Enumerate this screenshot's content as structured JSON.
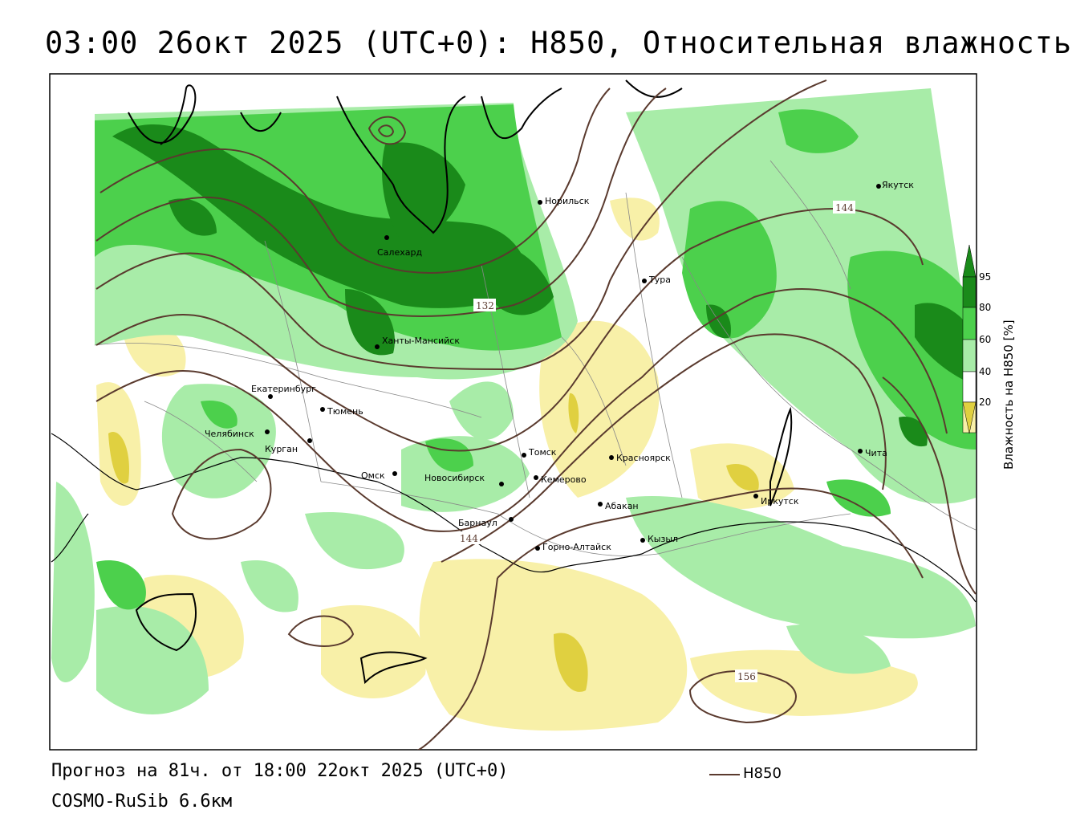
{
  "title": "03:00 26окт 2025 (UTC+0): H850, Относительная влажность",
  "footer": {
    "forecast": "Прогноз на 81ч. от 18:00 22окт 2025 (UTC+0)",
    "model": "COSMO-RuSib 6.6км",
    "legend_label": "H850"
  },
  "colorbar": {
    "title": "Влажность на H850 [%]",
    "levels": [
      "95",
      "80",
      "60",
      "40",
      "20"
    ],
    "colors": {
      "c95": "#1a8a1a",
      "c80": "#4cd04c",
      "c60": "#a8eca8",
      "c40": "#ffffff",
      "c20": "#f8f0a8",
      "c0": "#e0d040"
    }
  },
  "contour_color": "#5a3a2e",
  "isoline_labels": [
    "132",
    "144",
    "144",
    "156"
  ],
  "cities": [
    {
      "name": "Якутск"
    },
    {
      "name": "Норильск"
    },
    {
      "name": "Салехард"
    },
    {
      "name": "Тура"
    },
    {
      "name": "Ханты-Мансийск"
    },
    {
      "name": "Екатеринбург"
    },
    {
      "name": "Тюмень"
    },
    {
      "name": "Челябинск"
    },
    {
      "name": "Курган"
    },
    {
      "name": "Омск"
    },
    {
      "name": "Новосибирск"
    },
    {
      "name": "Томск"
    },
    {
      "name": "Кемерово"
    },
    {
      "name": "Красноярск"
    },
    {
      "name": "Абакан"
    },
    {
      "name": "Барнаул"
    },
    {
      "name": "Горно-Алтайск"
    },
    {
      "name": "Кызыл"
    },
    {
      "name": "Иркутск"
    },
    {
      "name": "Чита"
    }
  ]
}
